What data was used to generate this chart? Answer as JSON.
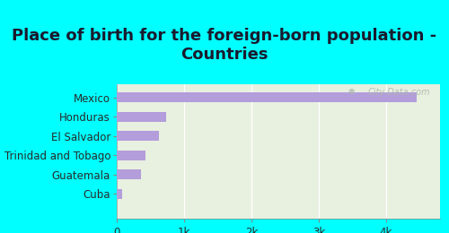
{
  "title": "Place of birth for the foreign-born population -\nCountries",
  "categories": [
    "Mexico",
    "Honduras",
    "El Salvador",
    "Trinidad and Tobago",
    "Guatemala",
    "Cuba"
  ],
  "values": [
    4450,
    730,
    620,
    430,
    360,
    80
  ],
  "bar_color": "#b39ddb",
  "background_outer": "#00ffff",
  "background_plot": "#e8f0e0",
  "xlim": [
    0,
    4800
  ],
  "xticks": [
    0,
    1000,
    2000,
    3000,
    4000
  ],
  "xticklabels": [
    "0",
    "1k",
    "2k",
    "3k",
    "4k"
  ],
  "watermark": "City-Data.com",
  "title_fontsize": 13,
  "tick_fontsize": 8.5,
  "label_fontsize": 8.5,
  "title_color": "#1a1a2e"
}
